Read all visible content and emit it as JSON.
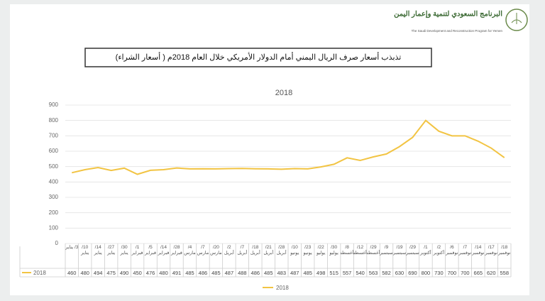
{
  "header": {
    "org_ar": "البرنامج السعودي لتنمية وإعمار اليمن",
    "org_en": "The Saudi Development and Reconstruction Program for Yemen"
  },
  "banner": "تذبذب أسعار صرف الريال اليمني أمام الدولار الأمريكي خلال العام 2018م ( أسعار الشراء)",
  "chart_data": {
    "type": "line",
    "title": "2018",
    "categories": [
      "3/ يناير",
      "10/ يناير",
      "14/ يناير",
      "27/ يناير",
      "30/ يناير",
      "1/ فبراير",
      "5/ فبراير",
      "14/ فبراير",
      "28/ فبراير",
      "4/ مارس",
      "7/ مارس",
      "20/ مارس",
      "2/ أبريل",
      "7/ أبريل",
      "18/ أبريل",
      "21/ أبريل",
      "28/ أبريل",
      "10/ يونيو",
      "23/ يونيو",
      "22/ يوليو",
      "30/ يوليو",
      "8/ أغسطس",
      "12/ أغسطس",
      "29/ أغسطس",
      "9/ سبتمبر",
      "19/ سبتمبر",
      "29/ سبتمبر",
      "1/ أكتوبر",
      "2/ أكتوبر",
      "6/ نوفمبر",
      "7/ نوفمبر",
      "14/ نوفمبر",
      "17/ نوفمبر",
      "18/ نوفمبر"
    ],
    "series": [
      {
        "name": "2018",
        "color": "#f2c443",
        "values": [
          460,
          480,
          494,
          475,
          490,
          450,
          476,
          480,
          491,
          485,
          486,
          485,
          487,
          488,
          486,
          485,
          483,
          487,
          485,
          498,
          515,
          557,
          540,
          563,
          582,
          630,
          690,
          800,
          730,
          700,
          700,
          665,
          620,
          558
        ]
      }
    ],
    "ylim": [
      0,
      900
    ],
    "yticks": [
      0,
      100,
      200,
      300,
      400,
      500,
      600,
      700,
      800,
      900
    ],
    "grid": true
  }
}
